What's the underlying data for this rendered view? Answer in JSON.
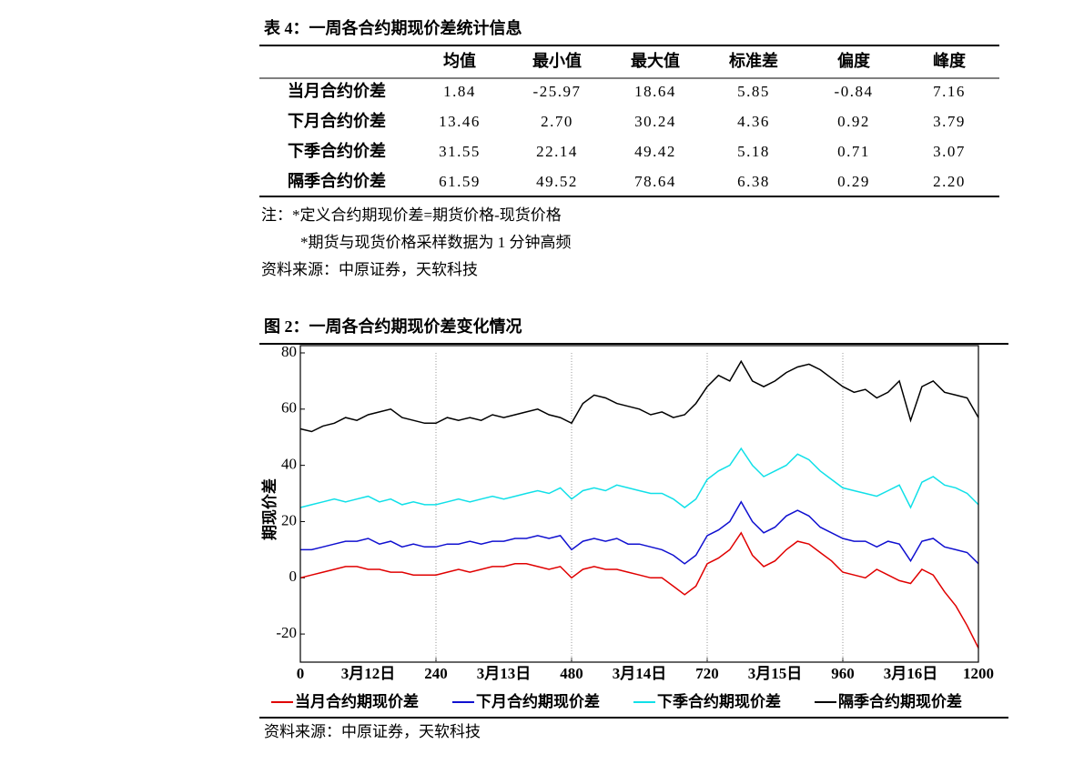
{
  "table_title": "表 4：一周各合约期现价差统计信息",
  "table": {
    "columns": [
      "均值",
      "最小值",
      "最大值",
      "标准差",
      "偏度",
      "峰度"
    ],
    "rows": [
      {
        "label": "当月合约价差",
        "cells": [
          "1.84",
          "-25.97",
          "18.64",
          "5.85",
          "-0.84",
          "7.16"
        ]
      },
      {
        "label": "下月合约价差",
        "cells": [
          "13.46",
          "2.70",
          "30.24",
          "4.36",
          "0.92",
          "3.79"
        ]
      },
      {
        "label": "下季合约价差",
        "cells": [
          "31.55",
          "22.14",
          "49.42",
          "5.18",
          "0.71",
          "3.07"
        ]
      },
      {
        "label": "隔季合约价差",
        "cells": [
          "61.59",
          "49.52",
          "78.64",
          "6.38",
          "0.29",
          "2.20"
        ]
      }
    ]
  },
  "notes": [
    "注：*定义合约期现价差=期货价格-现货价格",
    "*期货与现货价格采样数据为 1 分钟高频",
    "资料来源：中原证券，天软科技"
  ],
  "figure_title": "图 2：一周各合约期现价差变化情况",
  "figure_source": "资料来源：中原证券，天软科技",
  "chart_data": {
    "type": "line",
    "y_label": "期现价差",
    "x": [
      0,
      20,
      40,
      60,
      80,
      100,
      120,
      140,
      160,
      180,
      200,
      220,
      240,
      260,
      280,
      300,
      320,
      340,
      360,
      380,
      400,
      420,
      440,
      460,
      480,
      500,
      520,
      540,
      560,
      580,
      600,
      620,
      640,
      660,
      680,
      700,
      720,
      740,
      760,
      780,
      800,
      820,
      840,
      860,
      880,
      900,
      920,
      940,
      960,
      980,
      1000,
      1020,
      1040,
      1060,
      1080,
      1100,
      1120,
      1140,
      1160,
      1180,
      1200
    ],
    "xlim": [
      0,
      1200
    ],
    "xticks": [
      0,
      {
        "value": 120,
        "label": "3月12日"
      },
      240,
      {
        "value": 360,
        "label": "3月13日"
      },
      480,
      {
        "value": 600,
        "label": "3月14日"
      },
      720,
      {
        "value": 840,
        "label": "3月15日"
      },
      960,
      {
        "value": 1080,
        "label": "3月16日"
      },
      1200
    ],
    "ylim": [
      -30,
      80
    ],
    "yticks": [
      -20,
      0,
      20,
      40,
      60,
      80
    ],
    "series": [
      {
        "name": "当月合约期现价差",
        "color": "#e00000",
        "values": [
          0,
          1,
          2,
          3,
          4,
          4,
          3,
          3,
          2,
          2,
          1,
          1,
          1,
          2,
          3,
          2,
          3,
          4,
          4,
          5,
          5,
          4,
          3,
          4,
          0,
          3,
          4,
          3,
          3,
          2,
          1,
          0,
          0,
          -3,
          -6,
          -3,
          5,
          7,
          10,
          16,
          8,
          4,
          6,
          10,
          13,
          12,
          9,
          6,
          2,
          1,
          0,
          3,
          1,
          -1,
          -2,
          3,
          1,
          -5,
          -10,
          -17,
          -25
        ]
      },
      {
        "name": "下月合约期现价差",
        "color": "#1010d0",
        "values": [
          10,
          10,
          11,
          12,
          13,
          13,
          14,
          12,
          13,
          11,
          12,
          11,
          11,
          12,
          12,
          13,
          12,
          13,
          13,
          14,
          14,
          15,
          14,
          15,
          10,
          13,
          14,
          13,
          14,
          12,
          12,
          11,
          10,
          8,
          5,
          8,
          15,
          17,
          20,
          27,
          20,
          16,
          18,
          22,
          24,
          22,
          18,
          16,
          14,
          13,
          13,
          11,
          13,
          12,
          6,
          13,
          14,
          11,
          10,
          9,
          5
        ]
      },
      {
        "name": "下季合约期现价差",
        "color": "#10e0e8",
        "values": [
          25,
          26,
          27,
          28,
          27,
          28,
          29,
          27,
          28,
          26,
          27,
          26,
          26,
          27,
          28,
          27,
          28,
          29,
          28,
          29,
          30,
          31,
          30,
          32,
          28,
          31,
          32,
          31,
          33,
          32,
          31,
          30,
          30,
          28,
          25,
          28,
          35,
          38,
          40,
          46,
          40,
          36,
          38,
          40,
          44,
          42,
          38,
          35,
          32,
          31,
          30,
          29,
          31,
          33,
          25,
          34,
          36,
          33,
          32,
          30,
          26
        ]
      },
      {
        "name": "隔季合约期现价差",
        "color": "#000000",
        "values": [
          53,
          52,
          54,
          55,
          57,
          56,
          58,
          59,
          60,
          57,
          56,
          55,
          55,
          57,
          56,
          57,
          56,
          58,
          57,
          58,
          59,
          60,
          58,
          57,
          55,
          62,
          65,
          64,
          62,
          61,
          60,
          58,
          59,
          57,
          58,
          62,
          68,
          72,
          70,
          77,
          70,
          68,
          70,
          73,
          75,
          76,
          74,
          71,
          68,
          66,
          67,
          64,
          66,
          70,
          56,
          68,
          70,
          66,
          65,
          64,
          57
        ]
      }
    ]
  }
}
